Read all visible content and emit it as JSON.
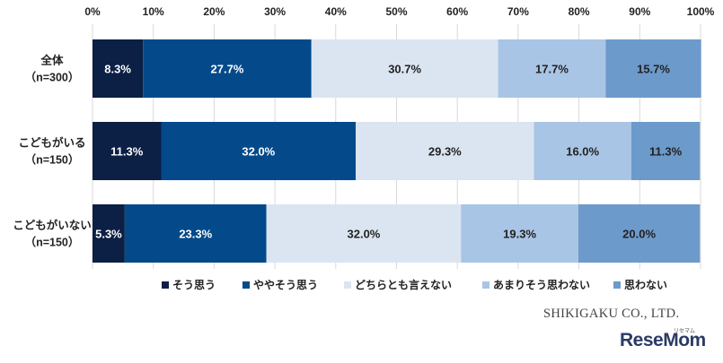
{
  "chart_data": {
    "type": "bar",
    "orientation": "horizontal",
    "stacked": true,
    "percent": true,
    "xlim": [
      0,
      100
    ],
    "x_ticks": [
      "0%",
      "10%",
      "20%",
      "30%",
      "40%",
      "50%",
      "60%",
      "70%",
      "80%",
      "90%",
      "100%"
    ],
    "grid": true,
    "legend_position": "bottom",
    "categories": [
      {
        "line1": "全体",
        "line2": "（n=300）"
      },
      {
        "line1": "こどもがいる",
        "line2": "（n=150）"
      },
      {
        "line1": "こどもがいない",
        "line2": "（n=150）"
      }
    ],
    "series": [
      {
        "name": "そう思う",
        "color": "#0c1f44",
        "label_color": "#ffffff",
        "values": [
          8.3,
          11.3,
          5.3
        ]
      },
      {
        "name": "ややそう思う",
        "color": "#044a8b",
        "label_color": "#ffffff",
        "values": [
          27.7,
          32.0,
          23.3
        ]
      },
      {
        "name": "どちらとも言えない",
        "color": "#dbe5f1",
        "label_color": "#222222",
        "values": [
          30.7,
          29.3,
          32.0
        ]
      },
      {
        "name": "あまりそう思わない",
        "color": "#a9c5e5",
        "label_color": "#222222",
        "values": [
          17.7,
          16.0,
          19.3
        ]
      },
      {
        "name": "思わない",
        "color": "#6c9acb",
        "label_color": "#222222",
        "values": [
          15.7,
          11.3,
          20.0
        ]
      }
    ]
  },
  "credit": "SHIKIGAKU CO., LTD.",
  "logo": "ReseMom",
  "logo_sub": "リセマム"
}
